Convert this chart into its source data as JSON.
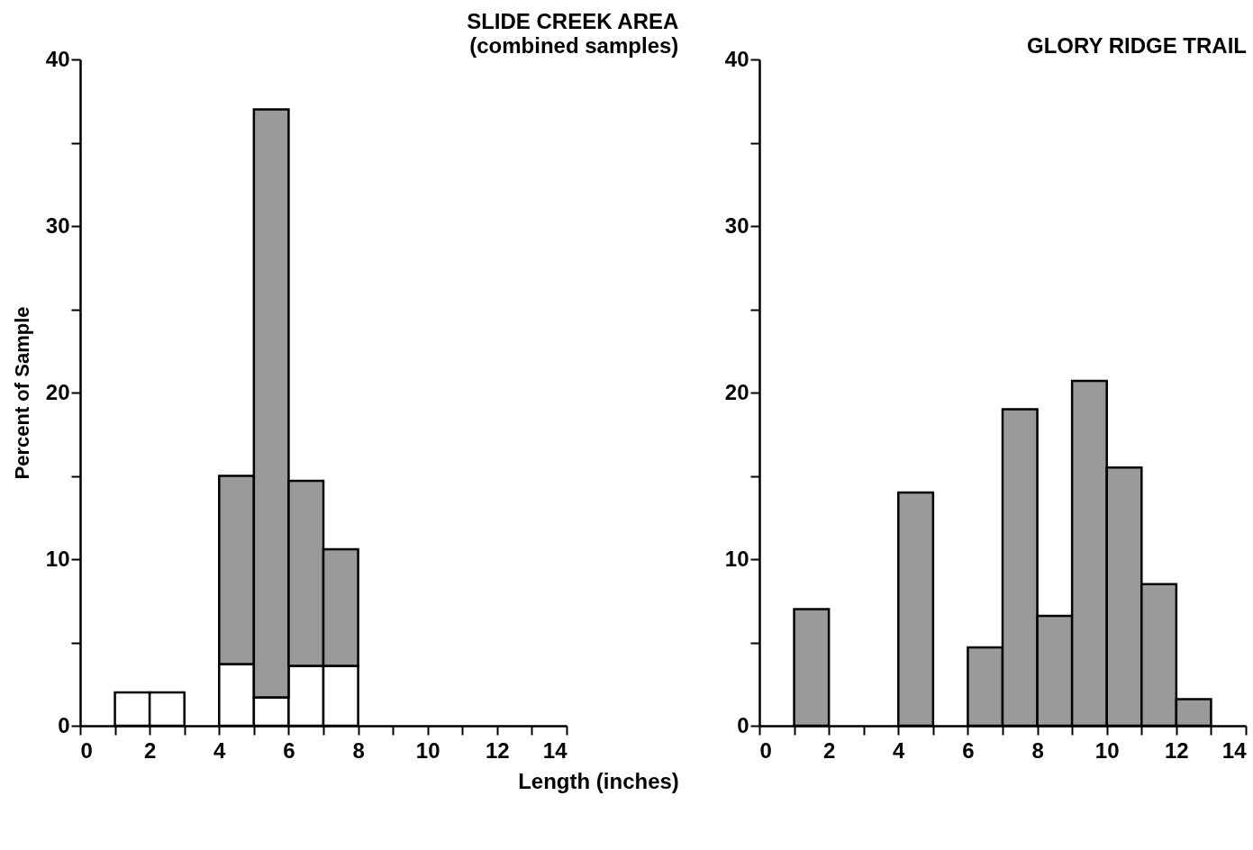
{
  "chart_data": [
    {
      "type": "bar",
      "title": "SLIDE CREEK AREA",
      "subtitle": "(combined samples)",
      "xlabel": "Length (inches)",
      "ylabel": "Percent of Sample",
      "stacked": true,
      "x": [
        1.5,
        2.5,
        3.5,
        4.5,
        5.5,
        6.5,
        7.5
      ],
      "series": [
        {
          "color": "#ffffff",
          "values": [
            2,
            2,
            null,
            3.7,
            1.7,
            3.6,
            3.6
          ]
        },
        {
          "color": "#9a9a9a",
          "values": [
            null,
            null,
            null,
            11.3,
            35.3,
            11.1,
            7
          ]
        }
      ],
      "xlim": [
        0,
        14
      ],
      "xticks": [
        0,
        {
          "value": 1,
          "label": null
        },
        2,
        {
          "value": 3,
          "label": null
        },
        4,
        {
          "value": 5,
          "label": null
        },
        6,
        {
          "value": 7,
          "label": null
        },
        8,
        {
          "value": 9,
          "label": null
        },
        10,
        {
          "value": 11,
          "label": null
        },
        12,
        {
          "value": 13,
          "label": null
        },
        14
      ],
      "ylim": [
        0,
        40
      ],
      "yticks": [
        0,
        {
          "value": 5,
          "label": null
        },
        10,
        {
          "value": 15,
          "label": null
        },
        20,
        {
          "value": 25,
          "label": null
        },
        30,
        {
          "value": 35,
          "label": null
        },
        40
      ],
      "grid": false,
      "legend": false
    },
    {
      "type": "histogram",
      "title": "GLORY RIDGE TRAIL",
      "bins": [
        1,
        2,
        3,
        4,
        5,
        6,
        7,
        8,
        9,
        10,
        11,
        12,
        13
      ],
      "color": "#9a9a9a",
      "values": [
        7,
        0,
        0,
        14,
        0,
        4.7,
        19,
        6.6,
        20.7,
        15.5,
        8.5,
        1.6
      ],
      "xlim": [
        0,
        14
      ],
      "xticks": [
        0,
        {
          "value": 1,
          "label": null
        },
        2,
        {
          "value": 3,
          "label": null
        },
        4,
        {
          "value": 5,
          "label": null
        },
        6,
        {
          "value": 7,
          "label": null
        },
        8,
        {
          "value": 9,
          "label": null
        },
        10,
        {
          "value": 11,
          "label": null
        },
        12,
        {
          "value": 13,
          "label": null
        },
        14
      ],
      "ylim": [
        0,
        40
      ],
      "yticks": [
        0,
        {
          "value": 5,
          "label": null
        },
        10,
        {
          "value": 15,
          "label": null
        },
        20,
        {
          "value": 25,
          "label": null
        },
        30,
        {
          "value": 35,
          "label": null
        },
        40
      ],
      "grid": false,
      "legend": false
    }
  ]
}
